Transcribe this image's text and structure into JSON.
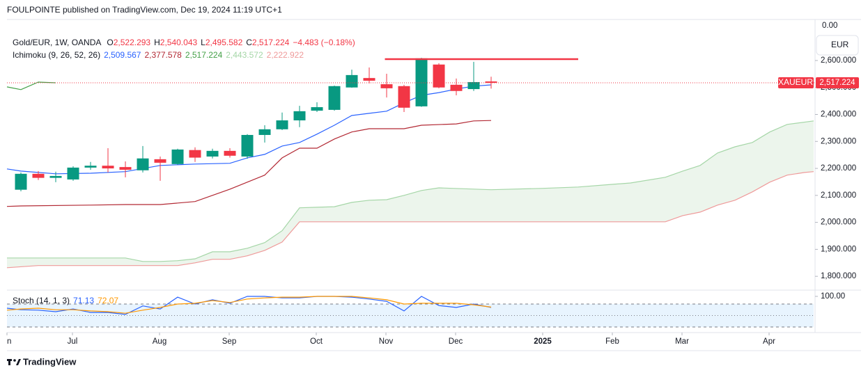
{
  "header": {
    "title": "FOULPOINTE published on TradingView.com, Dec 19, 2024 11:19 UTC+1",
    "brand": "TradingView"
  },
  "chart_data": [
    {
      "type": "candlestick",
      "symbol_info": "Gold/EUR, 1W, OANDA",
      "ohlc": [
        {
          "name": "O",
          "label": "2,522.293"
        },
        {
          "name": "H",
          "label": "2,540.043"
        },
        {
          "name": "L",
          "label": "2,495.582"
        },
        {
          "name": "C",
          "label": "2,517.224"
        }
      ],
      "change_label": "−4.483 (−0.18%)",
      "currency": "EUR",
      "top_label": "0.00",
      "up_color": "#089981",
      "down_color": "#f23645",
      "candles": {
        "x": [
          0,
          1,
          2,
          3,
          4,
          5,
          6,
          7,
          8,
          9,
          10,
          11,
          12,
          13,
          14,
          15,
          16,
          17,
          18,
          19,
          20,
          21,
          22,
          23,
          24,
          25,
          26,
          27
        ],
        "open": [
          2121,
          2180,
          2165,
          2159,
          2203,
          2210,
          2205,
          2193,
          2234,
          2216,
          2268,
          2244,
          2265,
          2244,
          2324,
          2345,
          2378,
          2414,
          2417,
          2500,
          2535,
          2512,
          2505,
          2430,
          2585,
          2510,
          2494,
          2522.293
        ],
        "high": [
          2185,
          2190,
          2188,
          2208,
          2224,
          2275,
          2226,
          2283,
          2244,
          2273,
          2278,
          2273,
          2275,
          2327,
          2360,
          2407,
          2432,
          2445,
          2507,
          2566,
          2574,
          2551,
          2510,
          2610,
          2590,
          2533,
          2595,
          2540.043
        ],
        "low": [
          2115,
          2157,
          2149,
          2154,
          2195,
          2185,
          2167,
          2185,
          2154,
          2213,
          2224,
          2237,
          2240,
          2236,
          2296,
          2342,
          2353,
          2409,
          2414,
          2499,
          2515,
          2463,
          2409,
          2428,
          2497,
          2471,
          2487,
          2495.582
        ],
        "close": [
          2180,
          2165,
          2172,
          2203,
          2210,
          2200,
          2195,
          2237,
          2221,
          2270,
          2240,
          2265,
          2247,
          2324,
          2345,
          2378,
          2412,
          2427,
          2505,
          2546,
          2525,
          2497,
          2425,
          2608,
          2500,
          2487,
          2520,
          2517.224
        ]
      },
      "indicator": "Ichimoku (9, 26, 52, 26)",
      "series": [
        {
          "color": "#2962ff",
          "legend_label": "2,509.567",
          "x": [
            -0.8,
            0,
            2,
            4,
            6,
            8,
            10,
            12,
            13,
            14,
            15,
            16,
            17,
            18,
            19,
            20,
            21,
            22,
            23,
            24,
            25,
            26,
            27
          ],
          "values": [
            2198,
            2190,
            2180,
            2182,
            2188,
            2211,
            2216,
            2219,
            2239,
            2252,
            2283,
            2296,
            2327,
            2360,
            2396,
            2404,
            2412,
            2443,
            2471,
            2481,
            2494,
            2505,
            2509.567
          ]
        },
        {
          "color": "#b22833",
          "legend_label": "2,377.578",
          "x": [
            -0.8,
            0,
            4,
            6,
            8,
            10,
            12,
            14,
            15,
            16,
            17,
            18,
            19,
            20,
            22,
            23,
            25,
            26,
            27
          ],
          "values": [
            2059,
            2061,
            2064,
            2066,
            2066,
            2077,
            2123,
            2175,
            2239,
            2275,
            2275,
            2309,
            2335,
            2347,
            2347,
            2360,
            2365,
            2376,
            2377.578
          ]
        },
        {
          "color": "#43a047",
          "legend_label": "2,517.224",
          "x": [
            -0.8,
            0,
            1,
            2
          ],
          "values": [
            2502,
            2492,
            2520,
            2517.224
          ]
        },
        {
          "color": "#a5d6a7",
          "legend_label": "2,443.572",
          "x": [
            -0.8,
            4,
            6,
            7,
            8,
            9,
            10,
            11,
            12,
            13,
            14,
            15,
            16,
            17,
            18,
            19,
            20,
            21,
            22,
            23,
            24,
            27,
            30,
            32,
            34,
            35,
            37,
            38,
            39,
            40,
            41,
            42,
            43,
            44,
            45.52
          ],
          "values": [
            1868,
            1868,
            1868,
            1855,
            1855,
            1858,
            1865,
            1891,
            1891,
            1904,
            1925,
            1969,
            2054,
            2056,
            2058,
            2074,
            2082,
            2084,
            2100,
            2118,
            2128,
            2121,
            2126,
            2131,
            2141,
            2146,
            2167,
            2190,
            2211,
            2257,
            2280,
            2296,
            2335,
            2363,
            2376
          ]
        },
        {
          "color": "#ef9a9a",
          "legend_label": "2,222.922",
          "x": [
            -0.8,
            1,
            9,
            10,
            11,
            12,
            13,
            14,
            15,
            16,
            21,
            37,
            38,
            39,
            40,
            41,
            42,
            43,
            44,
            45,
            45.52
          ],
          "values": [
            1832,
            1840,
            1840,
            1850,
            1863,
            1863,
            1876,
            1896,
            1927,
            2002,
            2002,
            2002,
            2025,
            2038,
            2064,
            2082,
            2113,
            2149,
            2175,
            2185,
            2188
          ]
        }
      ],
      "cloud_color": "#43a047",
      "hline": {
        "value": 2605,
        "x": [
          20.9,
          32
        ],
        "color": "#f23645"
      },
      "last_price": {
        "value": 2517.224,
        "label": "2,517.224",
        "symbol": "XAUEUR",
        "color": "#f23645"
      },
      "xlim": [
        -0.8,
        45.52
      ],
      "ylim": [
        1754,
        2752
      ],
      "yticks": [
        {
          "value": 1800,
          "label": "1,800.000"
        },
        {
          "value": 1900,
          "label": "1,900.000"
        },
        {
          "value": 2000,
          "label": "2,000.000"
        },
        {
          "value": 2100,
          "label": "2,100.000"
        },
        {
          "value": 2200,
          "label": "2,200.000"
        },
        {
          "value": 2300,
          "label": "2,300.000"
        },
        {
          "value": 2400,
          "label": "2,400.000"
        },
        {
          "value": 2500,
          "label": "2,500.000"
        },
        {
          "value": 2600,
          "label": "2,600.000"
        }
      ]
    },
    {
      "type": "line",
      "title": "Stoch (14, 1, 3)",
      "series": [
        {
          "color": "#2962ff",
          "legend_label": "71.13",
          "x": [
            -0.8,
            0,
            1,
            2,
            3,
            4,
            5,
            6,
            7,
            8,
            9,
            10,
            11,
            12,
            13,
            14,
            15,
            16,
            17,
            18,
            19,
            20,
            21,
            22,
            23,
            24,
            25,
            26,
            27
          ],
          "values": [
            69,
            65,
            64,
            60,
            67,
            58,
            58,
            53,
            75,
            67,
            98,
            80,
            91,
            82,
            100,
            100,
            96,
            96,
            100,
            100,
            98,
            93,
            87,
            62,
            100,
            76,
            71,
            80,
            71.13
          ]
        },
        {
          "color": "#ff9800",
          "legend_label": "72.07",
          "x": [
            -0.8,
            0,
            1,
            2,
            3,
            4,
            5,
            6,
            7,
            8,
            9,
            10,
            11,
            12,
            13,
            14,
            15,
            16,
            17,
            18,
            19,
            20,
            21,
            22,
            23,
            24,
            25,
            26,
            27
          ],
          "values": [
            64,
            67,
            69,
            65,
            65,
            62,
            60,
            56,
            64,
            71,
            80,
            82,
            89,
            84,
            93,
            96,
            98,
            98,
            100,
            100,
            100,
            96,
            91,
            80,
            82,
            82,
            82,
            78,
            72.07
          ]
        }
      ],
      "bands": [
        80,
        50,
        20
      ],
      "band_color": "#2196f3",
      "xlim": [
        -0.8,
        45.52
      ],
      "ylim": [
        5.5,
        114.5
      ],
      "yticks": [
        {
          "value": 100,
          "label": "100.00"
        }
      ],
      "xticks": [
        {
          "value": -0.8,
          "label": "n"
        },
        {
          "value": 2.96,
          "label": "Jul"
        },
        {
          "value": 7.96,
          "label": "Aug"
        },
        {
          "value": 11.96,
          "label": "Sep"
        },
        {
          "value": 16.96,
          "label": "Oct"
        },
        {
          "value": 20.96,
          "label": "Nov"
        },
        {
          "value": 24.96,
          "label": "Dec"
        },
        {
          "value": 29.96,
          "label": "2025"
        },
        {
          "value": 33.96,
          "label": "Feb"
        },
        {
          "value": 37.96,
          "label": "Mar"
        },
        {
          "value": 42.96,
          "label": "Apr"
        }
      ]
    }
  ]
}
